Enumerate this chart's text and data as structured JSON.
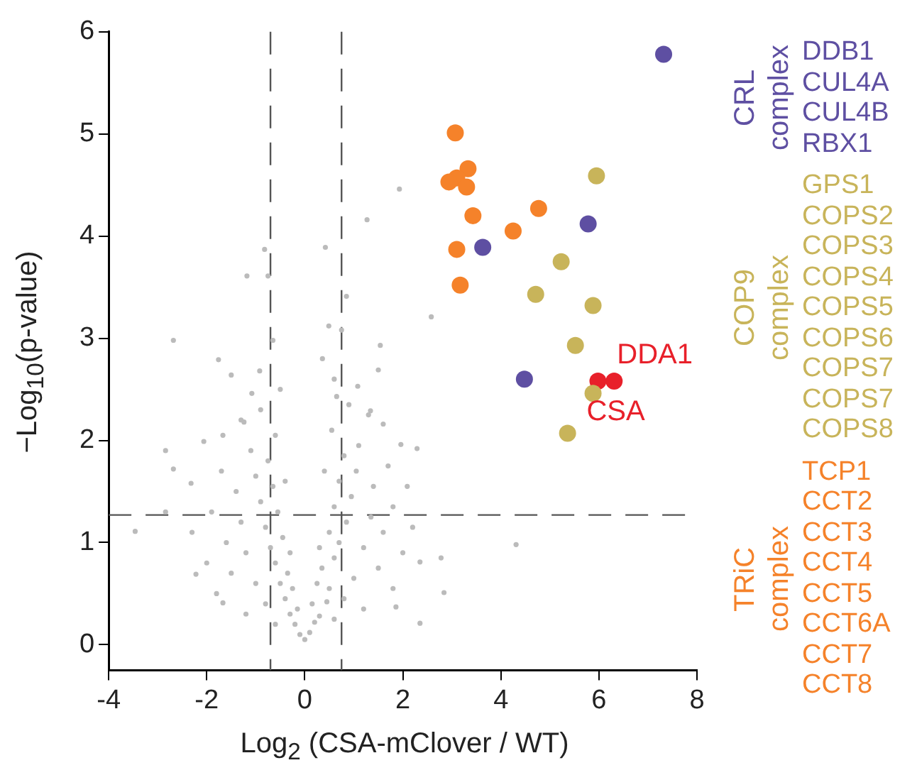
{
  "chart_data": {
    "type": "scatter",
    "xlabel": "Log$_{2}$ (CSA-mClover / WT)",
    "ylabel": "−Log$_{10}$(p-value)",
    "xlim": [
      -4,
      8
    ],
    "ylim": [
      -0.25,
      6
    ],
    "xticks": [
      -4,
      -2,
      0,
      2,
      4,
      6,
      8
    ],
    "yticks": [
      0,
      1,
      2,
      3,
      4,
      5,
      6
    ],
    "grid": false,
    "legend": "right",
    "marker": "circle",
    "series": [
      {
        "color": "#bbbbbb",
        "x": [
          1.93,
          1.27,
          -0.82,
          0.42,
          -1.18,
          -0.75,
          0.85,
          0.49,
          0.75,
          -2.68,
          -0.65,
          1.54,
          -1.76,
          0.36,
          -1.5,
          -0.92,
          1.5,
          -1.08,
          0.65,
          1.08,
          1.34,
          -1.24,
          1.6,
          -2.06,
          -1.67,
          -2.84,
          1.96,
          2.29,
          -2.68,
          -2.32,
          2.09,
          -2.84,
          -3.46,
          -2.22,
          -1.67,
          2.35,
          2.35,
          1.86,
          2.58,
          2.78,
          2.84,
          4.31,
          0,
          -0.1,
          0.1,
          -0.2,
          0.2,
          -0.3,
          0.3,
          -0.15,
          0.15,
          -0.4,
          0.45,
          -0.5,
          0.5,
          -0.35,
          0.35,
          -0.6,
          0.6,
          -0.7,
          0.7,
          -0.45,
          0.5,
          -0.8,
          0.85,
          -0.55,
          0.6,
          -0.9,
          0.95,
          -0.65,
          0.7,
          -1.0,
          1.05,
          -0.75,
          0.8,
          -1.1,
          1.1,
          -0.6,
          0.55,
          -1.2,
          1.2,
          -1.3,
          1.35,
          -1.0,
          1.0,
          -0.8,
          0.8,
          -1.5,
          1.5,
          -1.6,
          1.6,
          -1.4,
          1.4,
          -0.25,
          0.25,
          -0.3,
          0.3,
          -1.9,
          1.8,
          -1.7,
          1.7,
          -2.0,
          2.0,
          -0.4,
          0.4,
          -0.9,
          0.9,
          -1.3,
          1.3,
          -0.5,
          0.6,
          -1.2,
          1.2,
          -0.6,
          0.6,
          -2.3,
          2.2,
          -1.8,
          1.8
        ],
        "values": [
          4.46,
          4.16,
          3.87,
          3.89,
          3.61,
          3.61,
          3.41,
          3.12,
          3.08,
          2.98,
          2.98,
          2.93,
          2.79,
          2.8,
          2.64,
          2.68,
          2.69,
          2.46,
          2.43,
          2.53,
          2.29,
          2.18,
          2.16,
          1.99,
          2.05,
          1.9,
          1.96,
          1.92,
          1.72,
          1.58,
          1.55,
          1.3,
          1.11,
          0.69,
          0.41,
          0.81,
          0.21,
          0.37,
          3.21,
          0.85,
          0.51,
          0.98,
          0.05,
          0.1,
          0.12,
          0.2,
          0.22,
          0.3,
          0.28,
          0.35,
          0.4,
          0.45,
          0.42,
          0.6,
          0.55,
          0.7,
          0.75,
          0.8,
          0.85,
          0.95,
          1.0,
          1.05,
          1.1,
          1.15,
          1.2,
          1.3,
          1.35,
          1.4,
          1.45,
          1.55,
          1.6,
          1.65,
          1.7,
          1.8,
          1.85,
          1.9,
          1.95,
          2.05,
          2.1,
          0.9,
          0.95,
          1.2,
          1.25,
          0.6,
          0.65,
          0.4,
          0.45,
          0.7,
          0.75,
          1.0,
          1.1,
          1.5,
          1.55,
          0.55,
          0.6,
          0.9,
          0.95,
          1.3,
          1.35,
          1.7,
          1.75,
          0.8,
          0.9,
          1.6,
          1.7,
          2.3,
          2.35,
          2.2,
          2.25,
          2.5,
          2.6,
          0.3,
          0.35,
          0.2,
          0.25,
          1.1,
          1.15,
          0.5,
          0.55
        ]
      },
      {
        "name": "CRL complex",
        "color": "#5e4fa2",
        "x": [
          7.32,
          5.78,
          3.63,
          4.48
        ],
        "values": [
          5.78,
          4.12,
          3.89,
          2.6
        ]
      },
      {
        "name": "COP9 complex",
        "color": "#c8b45a",
        "x": [
          5.95,
          5.23,
          4.71,
          5.88,
          5.52,
          5.88,
          5.36
        ],
        "values": [
          4.59,
          3.75,
          3.43,
          3.32,
          2.93,
          2.46,
          2.07
        ]
      },
      {
        "name": "TRiC complex",
        "color": "#f5822a",
        "x": [
          3.07,
          3.33,
          3.1,
          2.94,
          3.3,
          4.77,
          3.43,
          4.25,
          3.1,
          3.17
        ],
        "values": [
          5.01,
          4.66,
          4.57,
          4.53,
          4.48,
          4.27,
          4.2,
          4.05,
          3.87,
          3.52
        ]
      },
      {
        "color": "#e8202a",
        "x": [
          5.98,
          6.31
        ],
        "values": [
          2.58,
          2.58
        ]
      }
    ],
    "ref_lines": [
      {
        "axis": "y",
        "value": 1.27,
        "color": "#555555",
        "line_style": "dashed"
      },
      {
        "axis": "x",
        "value": -0.7,
        "color": "#555555",
        "line_style": "dashed"
      },
      {
        "axis": "x",
        "value": 0.75,
        "color": "#555555",
        "line_style": "dashed"
      }
    ],
    "annotations": [
      {
        "text": "DDA1",
        "x": 6.31,
        "y": 2.58
      },
      {
        "text": "CSA",
        "x": 5.98,
        "y": 2.58
      },
      "DDB1\nCUL4A\nCUL4B\nRBX1",
      "GPS1\nCOPS2\nCOPS3\nCOPS4\nCOPS5\nCOPS6\nCOPS7\nCOPS7\nCOPS8",
      "TCP1\nCCT2\nCCT3\nCCT4\nCCT5\nCCT6A\nCCT7\nCCT8"
    ]
  }
}
